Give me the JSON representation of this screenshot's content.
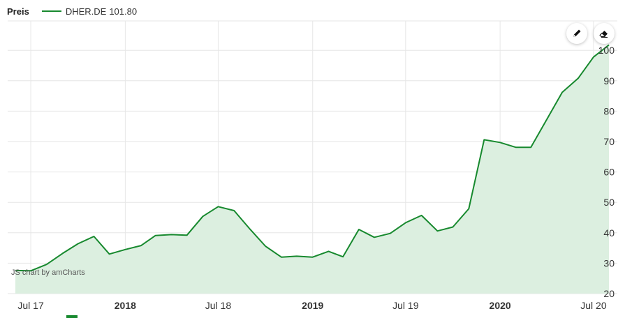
{
  "legend": {
    "label": "Preis",
    "series_name": "DHER.DE",
    "series_value": "101.80"
  },
  "credit": "JS chart by amCharts",
  "colors": {
    "line": "#17892e",
    "fill": "#dcefe0",
    "grid": "#e6e6e6",
    "axis_text": "#333333"
  },
  "toolbar": {
    "draw_icon": "pencil-icon",
    "erase_icon": "eraser-icon"
  },
  "chart_data": {
    "type": "area",
    "title": "",
    "xlabel": "",
    "ylabel": "",
    "ylim": [
      20,
      100
    ],
    "yticks": [
      20,
      30,
      40,
      50,
      60,
      70,
      80,
      90,
      100
    ],
    "xlim": [
      "2017-06-01",
      "2020-07-31"
    ],
    "xticks": [
      {
        "date": "2017-07-01",
        "label": "Jul 17",
        "bold": false
      },
      {
        "date": "2018-01-01",
        "label": "2018",
        "bold": true
      },
      {
        "date": "2018-07-01",
        "label": "Jul 18",
        "bold": false
      },
      {
        "date": "2019-01-01",
        "label": "2019",
        "bold": true
      },
      {
        "date": "2019-07-01",
        "label": "Jul 19",
        "bold": false
      },
      {
        "date": "2020-01-01",
        "label": "2020",
        "bold": true
      },
      {
        "date": "2020-07-01",
        "label": "Jul 20",
        "bold": false
      }
    ],
    "grid": true,
    "series": [
      {
        "name": "DHER.DE",
        "points": [
          {
            "x": "2017-06-01",
            "y": 27.6
          },
          {
            "x": "2017-07-01",
            "y": 27.5
          },
          {
            "x": "2017-08-01",
            "y": 29.6
          },
          {
            "x": "2017-09-01",
            "y": 33.2
          },
          {
            "x": "2017-10-01",
            "y": 36.4
          },
          {
            "x": "2017-11-01",
            "y": 38.8
          },
          {
            "x": "2017-12-01",
            "y": 33.0
          },
          {
            "x": "2018-01-01",
            "y": 34.5
          },
          {
            "x": "2018-02-01",
            "y": 35.8
          },
          {
            "x": "2018-03-01",
            "y": 39.1
          },
          {
            "x": "2018-04-01",
            "y": 39.4
          },
          {
            "x": "2018-05-01",
            "y": 39.2
          },
          {
            "x": "2018-06-01",
            "y": 45.4
          },
          {
            "x": "2018-07-01",
            "y": 48.6
          },
          {
            "x": "2018-08-01",
            "y": 47.3
          },
          {
            "x": "2018-09-01",
            "y": 41.2
          },
          {
            "x": "2018-10-01",
            "y": 35.6
          },
          {
            "x": "2018-11-01",
            "y": 32.0
          },
          {
            "x": "2018-12-01",
            "y": 32.3
          },
          {
            "x": "2019-01-01",
            "y": 32.0
          },
          {
            "x": "2019-02-01",
            "y": 33.9
          },
          {
            "x": "2019-03-01",
            "y": 32.1
          },
          {
            "x": "2019-04-01",
            "y": 41.1
          },
          {
            "x": "2019-05-01",
            "y": 38.5
          },
          {
            "x": "2019-06-01",
            "y": 39.8
          },
          {
            "x": "2019-07-01",
            "y": 43.3
          },
          {
            "x": "2019-08-01",
            "y": 45.7
          },
          {
            "x": "2019-09-01",
            "y": 40.6
          },
          {
            "x": "2019-10-01",
            "y": 41.9
          },
          {
            "x": "2019-11-01",
            "y": 47.9
          },
          {
            "x": "2019-12-01",
            "y": 70.6
          },
          {
            "x": "2020-01-01",
            "y": 69.7
          },
          {
            "x": "2020-02-01",
            "y": 68.1
          },
          {
            "x": "2020-03-01",
            "y": 68.1
          },
          {
            "x": "2020-04-01",
            "y": 77.3
          },
          {
            "x": "2020-05-01",
            "y": 86.2
          },
          {
            "x": "2020-06-01",
            "y": 90.8
          },
          {
            "x": "2020-07-01",
            "y": 97.8
          },
          {
            "x": "2020-07-31",
            "y": 101.8
          }
        ]
      }
    ]
  }
}
